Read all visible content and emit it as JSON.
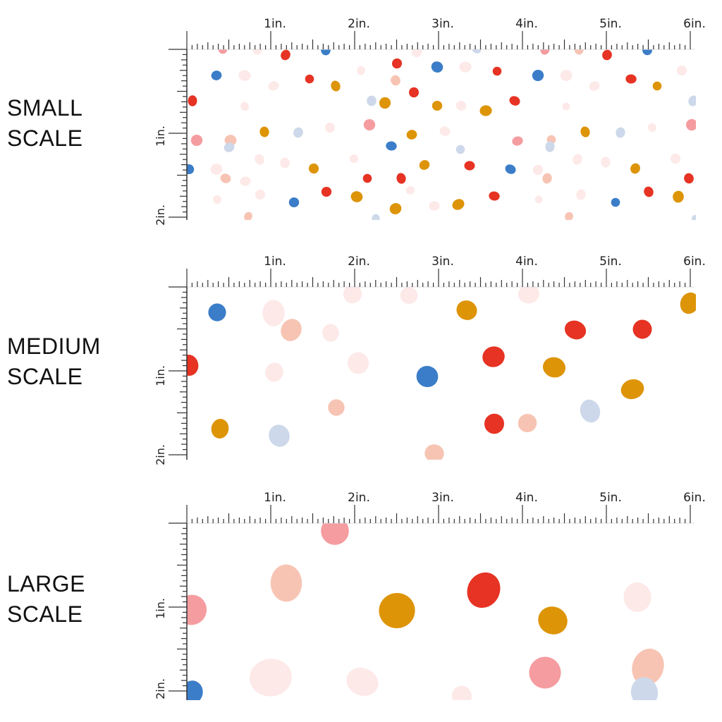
{
  "colors": {
    "red": "#e63323",
    "blue": "#3b7dc8",
    "gold": "#dd9407",
    "pink": "#f59ca0",
    "peach": "#f7c4b4",
    "lightblue": "#cdd8ea",
    "blush": "#fde9e8",
    "ruler": "#333333"
  },
  "sections": [
    {
      "id": "small",
      "label_lines": [
        "SMALL",
        "SCALE"
      ],
      "ruler_labels": [
        "1in.",
        "2in.",
        "3in.",
        "4in.",
        "5in.",
        "6in."
      ],
      "side_labels": [
        "1in.",
        "2in."
      ]
    },
    {
      "id": "medium",
      "label_lines": [
        "MEDIUM",
        "SCALE"
      ],
      "ruler_labels": [
        "1in.",
        "2in.",
        "3in.",
        "4in.",
        "5in.",
        "6in."
      ],
      "side_labels": [
        "1in.",
        "2in."
      ]
    },
    {
      "id": "large",
      "label_lines": [
        "LARGE",
        "SCALE"
      ],
      "ruler_labels": [
        "1in.",
        "2in.",
        "3in.",
        "4in.",
        "5in.",
        "6in."
      ],
      "side_labels": [
        "1in.",
        "2in."
      ]
    }
  ]
}
